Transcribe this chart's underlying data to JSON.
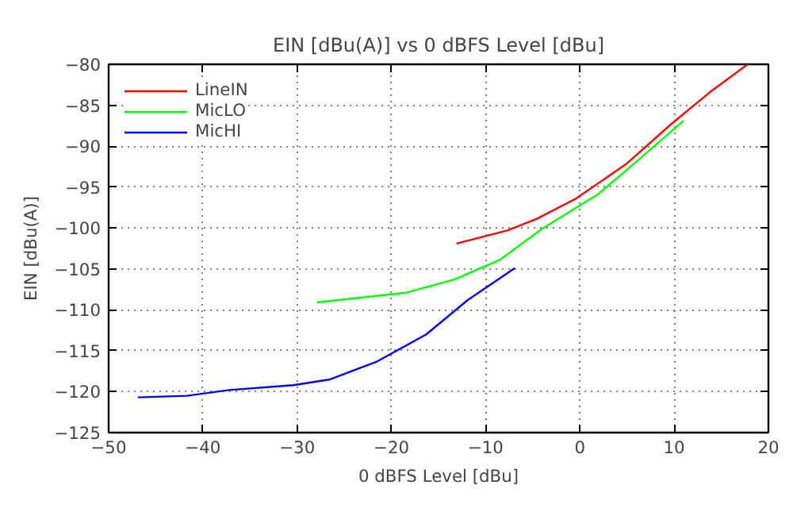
{
  "chart_data": {
    "type": "line",
    "title": "EIN [dBu(A)] vs 0 dBFS Level [dBu]",
    "xlabel": "0 dBFS Level [dBu]",
    "ylabel": "EIN [dBu(A)]",
    "xlim": [
      -50,
      20
    ],
    "ylim": [
      -125,
      -80
    ],
    "xticks": [
      -50,
      -40,
      -30,
      -20,
      -10,
      0,
      10,
      20
    ],
    "yticks": [
      -125,
      -120,
      -115,
      -110,
      -105,
      -100,
      -95,
      -90,
      -85,
      -80
    ],
    "grid": true,
    "legend": "top left",
    "marker": "none",
    "line_style": "solid",
    "series": [
      {
        "name": "LineIN",
        "color": "#ff0000",
        "x": [
          -13.1,
          -7.7,
          -4.6,
          -0.4,
          4.9,
          9.7,
          13.7,
          17.8
        ],
        "values": [
          -101.9,
          -100.3,
          -98.9,
          -96.4,
          -92.2,
          -87.3,
          -83.5,
          -80.0
        ]
      },
      {
        "name": "MicLO",
        "color": "#00ff00",
        "x": [
          -27.9,
          -18.4,
          -13.3,
          -8.5,
          -4.0,
          1.9,
          6.1,
          11.0
        ],
        "values": [
          -109.1,
          -107.9,
          -106.3,
          -103.9,
          -100.1,
          -95.9,
          -91.8,
          -86.9
        ]
      },
      {
        "name": "MicHI",
        "color": "#0000ff",
        "x": [
          -46.9,
          -41.7,
          -37.2,
          -30.4,
          -26.5,
          -21.5,
          -16.3,
          -11.9,
          -6.9
        ],
        "values": [
          -120.7,
          -120.5,
          -119.8,
          -119.2,
          -118.5,
          -116.3,
          -113.0,
          -108.8,
          -104.9
        ]
      }
    ]
  }
}
